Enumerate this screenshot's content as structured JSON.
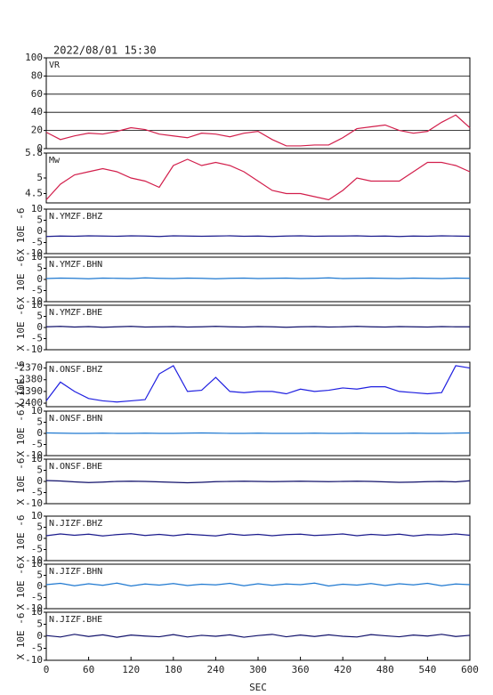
{
  "chart_data": [
    {
      "type": "line",
      "title": "2022/08/01 15:30",
      "x": [
        0,
        20,
        40,
        60,
        80,
        100,
        120,
        140,
        160,
        180,
        200,
        220,
        240,
        260,
        280,
        300,
        320,
        340,
        360,
        380,
        400,
        420,
        440,
        460,
        480,
        500,
        520,
        540,
        560,
        580,
        600
      ],
      "xlim": [
        0,
        600
      ],
      "ylim": [
        0,
        100
      ],
      "yticks": [
        100,
        80,
        60,
        40,
        20,
        0
      ],
      "grid": true,
      "series": [
        {
          "name": "VR",
          "color": "#d21e4b",
          "values": [
            18,
            10,
            14,
            17,
            16,
            19,
            23,
            21,
            16,
            14,
            12,
            17,
            16,
            13,
            17,
            19,
            10,
            3,
            3,
            4,
            4,
            12,
            22,
            24,
            26,
            20,
            17,
            19,
            29,
            37,
            23
          ]
        }
      ]
    },
    {
      "type": "line",
      "x": [
        0,
        20,
        40,
        60,
        80,
        100,
        120,
        140,
        160,
        180,
        200,
        220,
        240,
        260,
        280,
        300,
        320,
        340,
        360,
        380,
        400,
        420,
        440,
        460,
        480,
        500,
        520,
        540,
        560,
        580,
        600
      ],
      "xlim": [
        0,
        600
      ],
      "ylim": [
        4.2,
        5.8
      ],
      "yticks": [
        5.8,
        5.0,
        4.5
      ],
      "grid": false,
      "series": [
        {
          "name": "Mw",
          "color": "#d21e4b",
          "values": [
            4.3,
            4.8,
            5.1,
            5.2,
            5.3,
            5.2,
            5.0,
            4.9,
            4.7,
            5.4,
            5.6,
            5.4,
            5.5,
            5.4,
            5.2,
            4.9,
            4.6,
            4.5,
            4.5,
            4.4,
            4.3,
            4.6,
            5.0,
            4.9,
            4.9,
            4.9,
            5.2,
            5.5,
            5.5,
            5.4,
            5.2
          ]
        }
      ]
    },
    {
      "type": "line",
      "x": [
        0,
        20,
        40,
        60,
        80,
        100,
        120,
        140,
        160,
        180,
        200,
        220,
        240,
        260,
        280,
        300,
        320,
        340,
        360,
        380,
        400,
        420,
        440,
        460,
        480,
        500,
        520,
        540,
        560,
        580,
        600
      ],
      "xlim": [
        0,
        600
      ],
      "ylim": [
        -10,
        10
      ],
      "yticks": [
        10,
        5,
        0,
        -5,
        -10
      ],
      "ylabel": "X 10E -6",
      "series": [
        {
          "name": "N.YMZF.BHZ",
          "color": "#1a1a8c",
          "values": [
            -2.3,
            -2.1,
            -2.2,
            -2.0,
            -2.1,
            -2.2,
            -2.0,
            -2.1,
            -2.3,
            -2.0,
            -2.1,
            -2.2,
            -2.1,
            -2.0,
            -2.2,
            -2.1,
            -2.3,
            -2.1,
            -2.0,
            -2.2,
            -2.1,
            -2.1,
            -2.0,
            -2.2,
            -2.1,
            -2.3,
            -2.1,
            -2.2,
            -2.0,
            -2.1,
            -2.2
          ]
        }
      ]
    },
    {
      "type": "line",
      "x": [
        0,
        20,
        40,
        60,
        80,
        100,
        120,
        140,
        160,
        180,
        200,
        220,
        240,
        260,
        280,
        300,
        320,
        340,
        360,
        380,
        400,
        420,
        440,
        460,
        480,
        500,
        520,
        540,
        560,
        580,
        600
      ],
      "xlim": [
        0,
        600
      ],
      "ylim": [
        -10,
        10
      ],
      "yticks": [
        10,
        5,
        0,
        -5,
        -10
      ],
      "ylabel": "X 10E -6",
      "series": [
        {
          "name": "N.YMZF.BHN",
          "color": "#1e78d0",
          "values": [
            0.4,
            0.6,
            0.5,
            0.3,
            0.6,
            0.5,
            0.4,
            0.7,
            0.5,
            0.4,
            0.6,
            0.5,
            0.3,
            0.5,
            0.6,
            0.4,
            0.5,
            0.6,
            0.4,
            0.5,
            0.7,
            0.4,
            0.5,
            0.6,
            0.5,
            0.4,
            0.6,
            0.5,
            0.4,
            0.6,
            0.5
          ]
        }
      ]
    },
    {
      "type": "line",
      "x": [
        0,
        20,
        40,
        60,
        80,
        100,
        120,
        140,
        160,
        180,
        200,
        220,
        240,
        260,
        280,
        300,
        320,
        340,
        360,
        380,
        400,
        420,
        440,
        460,
        480,
        500,
        520,
        540,
        560,
        580,
        600
      ],
      "xlim": [
        0,
        600
      ],
      "ylim": [
        -10,
        10
      ],
      "yticks": [
        10,
        5,
        0,
        -5,
        -10
      ],
      "ylabel": "X 10E -6",
      "series": [
        {
          "name": "N.YMZF.BHE",
          "color": "#10106a",
          "values": [
            0.3,
            0.5,
            0.2,
            0.4,
            0.1,
            0.3,
            0.5,
            0.2,
            0.3,
            0.4,
            0.2,
            0.3,
            0.5,
            0.3,
            0.2,
            0.4,
            0.3,
            0.1,
            0.3,
            0.4,
            0.2,
            0.3,
            0.5,
            0.3,
            0.2,
            0.4,
            0.3,
            0.2,
            0.4,
            0.3,
            0.3
          ]
        }
      ]
    },
    {
      "type": "line",
      "x": [
        0,
        20,
        40,
        60,
        80,
        100,
        120,
        140,
        160,
        180,
        200,
        220,
        240,
        260,
        280,
        300,
        320,
        340,
        360,
        380,
        400,
        420,
        440,
        460,
        480,
        500,
        520,
        540,
        560,
        580,
        600
      ],
      "xlim": [
        0,
        600
      ],
      "ylim": [
        -2403,
        -2365
      ],
      "yticks": [
        -2370,
        -2380,
        -2390,
        -2400
      ],
      "ylabel": "X 10E -6",
      "series": [
        {
          "name": "N.ONSF.BHZ",
          "color": "#1f1fe0",
          "values": [
            -2398,
            -2382,
            -2390,
            -2396,
            -2398,
            -2399,
            -2398,
            -2397,
            -2375,
            -2368,
            -2390,
            -2389,
            -2378,
            -2390,
            -2391,
            -2390,
            -2390,
            -2392,
            -2388,
            -2390,
            -2389,
            -2387,
            -2388,
            -2386,
            -2386,
            -2390,
            -2391,
            -2392,
            -2391,
            -2368,
            -2370
          ]
        }
      ]
    },
    {
      "type": "line",
      "x": [
        0,
        20,
        40,
        60,
        80,
        100,
        120,
        140,
        160,
        180,
        200,
        220,
        240,
        260,
        280,
        300,
        320,
        340,
        360,
        380,
        400,
        420,
        440,
        460,
        480,
        500,
        520,
        540,
        560,
        580,
        600
      ],
      "xlim": [
        0,
        600
      ],
      "ylim": [
        -10,
        10
      ],
      "yticks": [
        10,
        5,
        0,
        -5,
        -10
      ],
      "ylabel": "X 10E -6",
      "series": [
        {
          "name": "N.ONSF.BHN",
          "color": "#1e78d0",
          "values": [
            0.2,
            0.1,
            0.0,
            0.0,
            0.1,
            0.0,
            0.0,
            0.1,
            0.0,
            0.0,
            0.1,
            0.2,
            0.1,
            0.0,
            0.0,
            0.1,
            0.0,
            0.0,
            0.0,
            0.1,
            0.0,
            0.0,
            0.1,
            0.0,
            0.0,
            0.0,
            0.1,
            0.0,
            0.0,
            0.1,
            0.2
          ]
        }
      ]
    },
    {
      "type": "line",
      "x": [
        0,
        20,
        40,
        60,
        80,
        100,
        120,
        140,
        160,
        180,
        200,
        220,
        240,
        260,
        280,
        300,
        320,
        340,
        360,
        380,
        400,
        420,
        440,
        460,
        480,
        500,
        520,
        540,
        560,
        580,
        600
      ],
      "xlim": [
        0,
        600
      ],
      "ylim": [
        -10,
        10
      ],
      "yticks": [
        10,
        5,
        0,
        -5,
        -10
      ],
      "ylabel": "X 10E -6",
      "series": [
        {
          "name": "N.ONSF.BHE",
          "color": "#10106a",
          "values": [
            0.4,
            0.2,
            -0.2,
            -0.5,
            -0.3,
            0.0,
            0.1,
            0.0,
            -0.2,
            -0.4,
            -0.6,
            -0.4,
            -0.1,
            0.0,
            0.1,
            0.0,
            -0.1,
            0.0,
            0.1,
            0.0,
            -0.1,
            0.0,
            0.1,
            0.0,
            -0.2,
            -0.4,
            -0.3,
            -0.1,
            0.0,
            -0.2,
            0.3
          ]
        }
      ]
    },
    {
      "type": "line",
      "x": [
        0,
        20,
        40,
        60,
        80,
        100,
        120,
        140,
        160,
        180,
        200,
        220,
        240,
        260,
        280,
        300,
        320,
        340,
        360,
        380,
        400,
        420,
        440,
        460,
        480,
        500,
        520,
        540,
        560,
        580,
        600
      ],
      "xlim": [
        0,
        600
      ],
      "ylim": [
        -10,
        10
      ],
      "yticks": [
        10,
        5,
        0,
        -5,
        -10
      ],
      "ylabel": "X 10E -6",
      "series": [
        {
          "name": "N.JIZF.BHZ",
          "color": "#1a1a8c",
          "values": [
            1.2,
            2.0,
            1.4,
            1.9,
            1.1,
            1.7,
            2.1,
            1.3,
            1.8,
            1.2,
            1.9,
            1.5,
            1.1,
            2.0,
            1.4,
            1.8,
            1.2,
            1.7,
            1.9,
            1.3,
            1.6,
            2.0,
            1.2,
            1.8,
            1.4,
            1.9,
            1.1,
            1.7,
            1.5,
            2.0,
            1.4
          ]
        }
      ]
    },
    {
      "type": "line",
      "x": [
        0,
        20,
        40,
        60,
        80,
        100,
        120,
        140,
        160,
        180,
        200,
        220,
        240,
        260,
        280,
        300,
        320,
        340,
        360,
        380,
        400,
        420,
        440,
        460,
        480,
        500,
        520,
        540,
        560,
        580,
        600
      ],
      "xlim": [
        0,
        600
      ],
      "ylim": [
        -10,
        10
      ],
      "yticks": [
        10,
        5,
        0,
        -5,
        -10
      ],
      "ylabel": "X 10E -6",
      "series": [
        {
          "name": "N.JIZF.BHN",
          "color": "#1e78d0",
          "values": [
            0.8,
            1.4,
            0.3,
            1.2,
            0.5,
            1.5,
            0.2,
            1.1,
            0.6,
            1.3,
            0.4,
            1.0,
            0.7,
            1.4,
            0.3,
            1.2,
            0.5,
            1.1,
            0.8,
            1.5,
            0.2,
            1.0,
            0.6,
            1.3,
            0.4,
            1.2,
            0.7,
            1.4,
            0.3,
            1.1,
            0.8
          ]
        }
      ]
    },
    {
      "type": "line",
      "x": [
        0,
        20,
        40,
        60,
        80,
        100,
        120,
        140,
        160,
        180,
        200,
        220,
        240,
        260,
        280,
        300,
        320,
        340,
        360,
        380,
        400,
        420,
        440,
        460,
        480,
        500,
        520,
        540,
        560,
        580,
        600
      ],
      "xlim": [
        0,
        600
      ],
      "ylim": [
        -10,
        10
      ],
      "yticks": [
        10,
        5,
        0,
        -5,
        -10
      ],
      "ylabel": "X 10E -6",
      "xlabel": "SEC",
      "xticks": [
        0,
        60,
        120,
        180,
        240,
        300,
        360,
        420,
        480,
        540,
        600
      ],
      "series": [
        {
          "name": "N.JIZF.BHE",
          "color": "#10106a",
          "values": [
            0.3,
            -0.3,
            0.8,
            -0.1,
            0.6,
            -0.4,
            0.5,
            0.1,
            -0.2,
            0.7,
            -0.3,
            0.4,
            0.0,
            0.6,
            -0.4,
            0.3,
            0.8,
            -0.2,
            0.5,
            -0.1,
            0.6,
            0.0,
            -0.3,
            0.7,
            0.2,
            -0.2,
            0.5,
            0.1,
            0.8,
            -0.1,
            0.4
          ]
        }
      ]
    }
  ]
}
